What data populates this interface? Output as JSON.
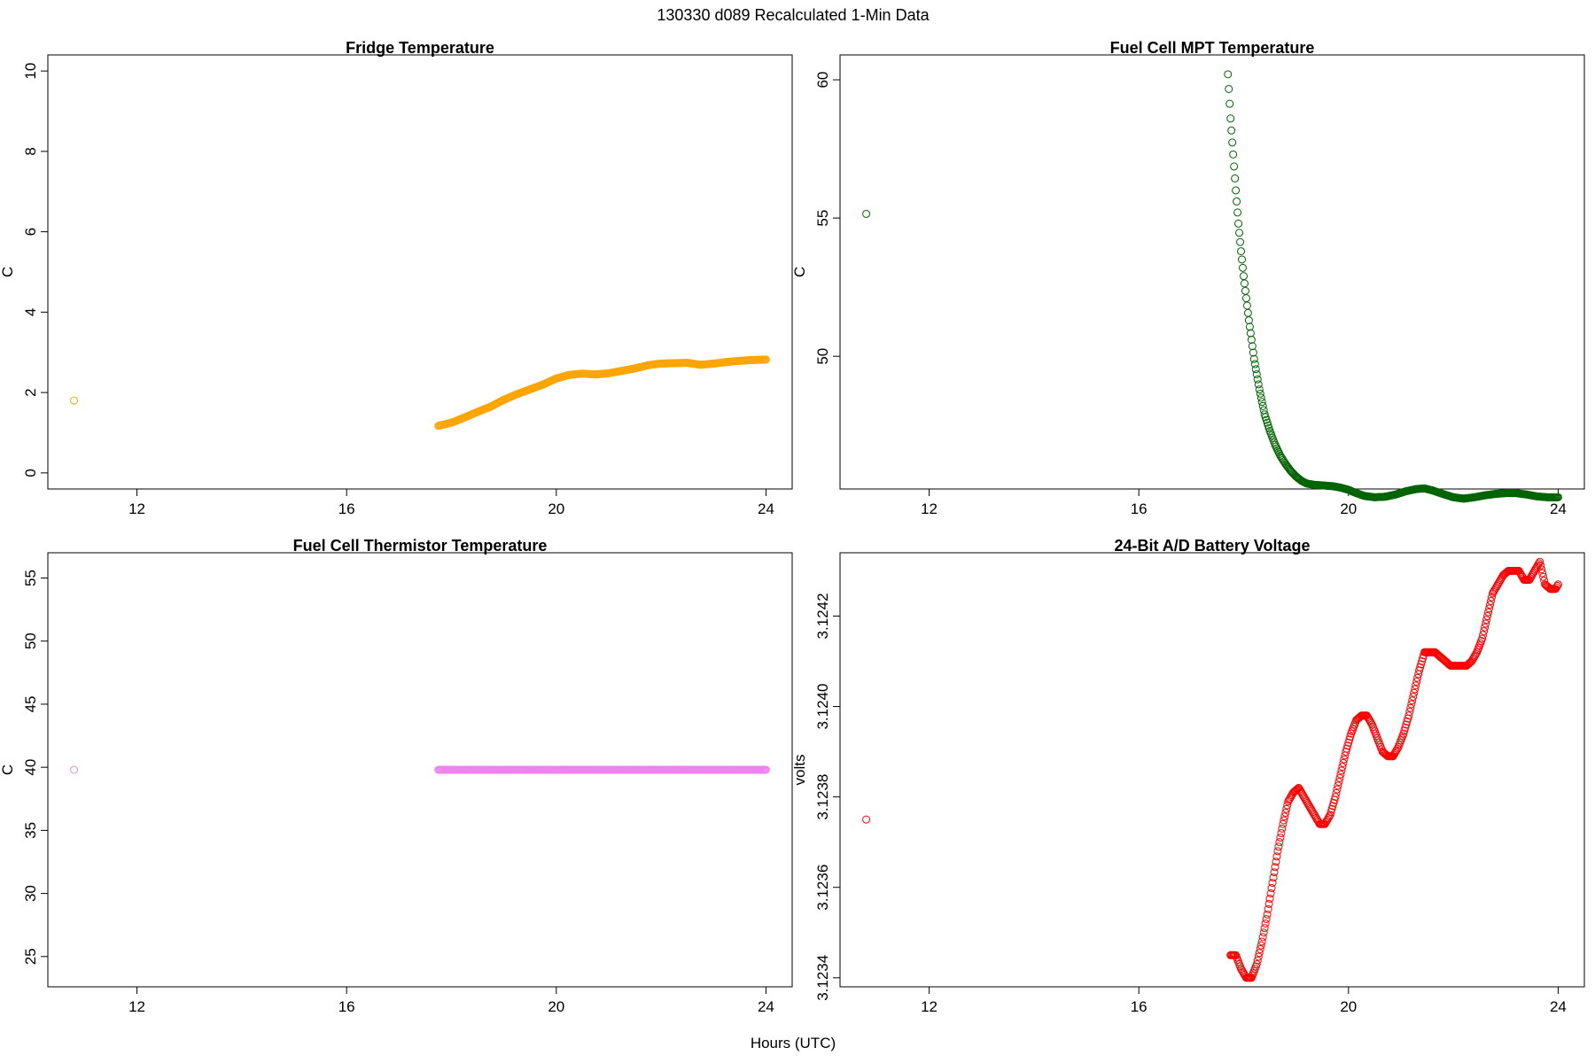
{
  "page": {
    "title": "130330   d089   Recalculated 1-Min Data",
    "xlabel": "Hours (UTC)"
  },
  "chart_data": [
    {
      "type": "scatter",
      "title": "Fridge Temperature",
      "ylabel": "C",
      "xlim": [
        10.3,
        24.5
      ],
      "ylim": [
        -0.4,
        10.4
      ],
      "xticks": [
        12,
        16,
        20,
        24
      ],
      "yticks": [
        0,
        2,
        4,
        6,
        8,
        10
      ],
      "color": "#ffa500",
      "outlier": {
        "x": 10.8,
        "y": 1.8
      },
      "series": [
        {
          "x": [
            17.75,
            18.0,
            18.25,
            18.5,
            18.75,
            19.0,
            19.25,
            19.5,
            19.75,
            20.0,
            20.25,
            20.5,
            20.75,
            21.0,
            21.25,
            21.5,
            21.75,
            22.0,
            22.25,
            22.5,
            22.75,
            23.0,
            23.25,
            23.5,
            23.75,
            24.0
          ],
          "y": [
            1.17,
            1.25,
            1.38,
            1.52,
            1.65,
            1.82,
            1.96,
            2.08,
            2.2,
            2.35,
            2.44,
            2.47,
            2.45,
            2.48,
            2.54,
            2.6,
            2.68,
            2.72,
            2.73,
            2.74,
            2.69,
            2.72,
            2.76,
            2.79,
            2.81,
            2.82
          ]
        }
      ]
    },
    {
      "type": "scatter",
      "title": "Fuel Cell MPT Temperature",
      "ylabel": "C",
      "xlim": [
        10.3,
        24.5
      ],
      "ylim": [
        45.2,
        60.9
      ],
      "xticks": [
        12,
        16,
        20,
        24
      ],
      "yticks": [
        50,
        55,
        60
      ],
      "color": "#006400",
      "outlier": {
        "x": 10.8,
        "y": 55.15
      },
      "series": [
        {
          "x": [
            17.7,
            17.75,
            17.8,
            17.85,
            17.9,
            17.95,
            18.0,
            18.1,
            18.2,
            18.3,
            18.4,
            18.5,
            18.6,
            18.7,
            18.8,
            18.9,
            19.0,
            19.1,
            19.2,
            19.35,
            19.5,
            19.7,
            19.85,
            20.0,
            20.15,
            20.3,
            20.5,
            20.7,
            20.9,
            21.1,
            21.3,
            21.45,
            21.6,
            21.8,
            22.0,
            22.2,
            22.4,
            22.6,
            22.8,
            23.0,
            23.2,
            23.4,
            23.6,
            23.8,
            24.0
          ],
          "y": [
            60.2,
            58.6,
            57.3,
            56.0,
            54.8,
            53.8,
            52.9,
            51.3,
            49.9,
            48.8,
            47.9,
            47.3,
            46.8,
            46.4,
            46.1,
            45.85,
            45.65,
            45.5,
            45.4,
            45.35,
            45.33,
            45.3,
            45.25,
            45.17,
            45.05,
            44.95,
            44.9,
            44.92,
            45.0,
            45.12,
            45.2,
            45.22,
            45.15,
            45.02,
            44.9,
            44.85,
            44.9,
            44.97,
            45.02,
            45.05,
            45.05,
            45.0,
            44.93,
            44.9,
            44.9
          ]
        }
      ]
    },
    {
      "type": "scatter",
      "title": "Fuel Cell Thermistor Temperature",
      "ylabel": "C",
      "xlim": [
        10.3,
        24.5
      ],
      "ylim": [
        22.6,
        57.0
      ],
      "xticks": [
        12,
        16,
        20,
        24
      ],
      "yticks": [
        25,
        30,
        35,
        40,
        45,
        50,
        55
      ],
      "color": "#ee82ee",
      "outlier": {
        "x": 10.8,
        "y": 39.8
      },
      "series": [
        {
          "x": [
            17.75,
            18.5,
            19.25,
            20.0,
            20.75,
            21.5,
            22.25,
            23.0,
            23.75,
            24.0
          ],
          "y": [
            39.8,
            39.8,
            39.8,
            39.8,
            39.8,
            39.8,
            39.8,
            39.8,
            39.8,
            39.8
          ]
        }
      ]
    },
    {
      "type": "scatter",
      "title": "24-Bit A/D Battery Voltage",
      "ylabel": "volts",
      "xlim": [
        10.3,
        24.5
      ],
      "ylim": [
        3.12338,
        3.12434
      ],
      "xticks": [
        12,
        16,
        20,
        24
      ],
      "yticks": [
        3.1234,
        3.1236,
        3.1238,
        3.124,
        3.1242
      ],
      "ytick_labels": [
        "3.1234",
        "3.1236",
        "3.1238",
        "3.1240",
        "3.1242"
      ],
      "color": "#ff0000",
      "outlier": {
        "x": 10.8,
        "y": 3.12375
      },
      "series": [
        {
          "x": [
            17.75,
            17.85,
            17.95,
            18.05,
            18.15,
            18.25,
            18.35,
            18.45,
            18.55,
            18.65,
            18.75,
            18.85,
            18.95,
            19.05,
            19.15,
            19.25,
            19.35,
            19.45,
            19.55,
            19.65,
            19.75,
            19.85,
            19.95,
            20.05,
            20.15,
            20.25,
            20.35,
            20.45,
            20.55,
            20.65,
            20.75,
            20.85,
            20.95,
            21.05,
            21.15,
            21.25,
            21.35,
            21.45,
            21.55,
            21.65,
            21.75,
            21.85,
            21.95,
            22.05,
            22.15,
            22.25,
            22.35,
            22.45,
            22.55,
            22.65,
            22.75,
            22.85,
            22.95,
            23.05,
            23.15,
            23.25,
            23.35,
            23.45,
            23.55,
            23.65,
            23.75,
            23.85,
            23.95,
            24.0
          ],
          "y": [
            3.12345,
            3.12345,
            3.12342,
            3.1234,
            3.1234,
            3.12343,
            3.12348,
            3.12354,
            3.12361,
            3.12368,
            3.12374,
            3.12379,
            3.12381,
            3.12382,
            3.1238,
            3.12378,
            3.12376,
            3.12374,
            3.12374,
            3.12376,
            3.1238,
            3.12385,
            3.1239,
            3.12394,
            3.12397,
            3.12398,
            3.12398,
            3.12396,
            3.12393,
            3.1239,
            3.12389,
            3.12389,
            3.12391,
            3.12394,
            3.12398,
            3.12403,
            3.12408,
            3.12412,
            3.12412,
            3.12412,
            3.12411,
            3.1241,
            3.12409,
            3.12409,
            3.12409,
            3.12409,
            3.1241,
            3.12412,
            3.12415,
            3.1242,
            3.12425,
            3.12427,
            3.12429,
            3.1243,
            3.1243,
            3.1243,
            3.12428,
            3.12428,
            3.1243,
            3.12432,
            3.12427,
            3.12426,
            3.12426,
            3.12427
          ]
        }
      ]
    }
  ]
}
